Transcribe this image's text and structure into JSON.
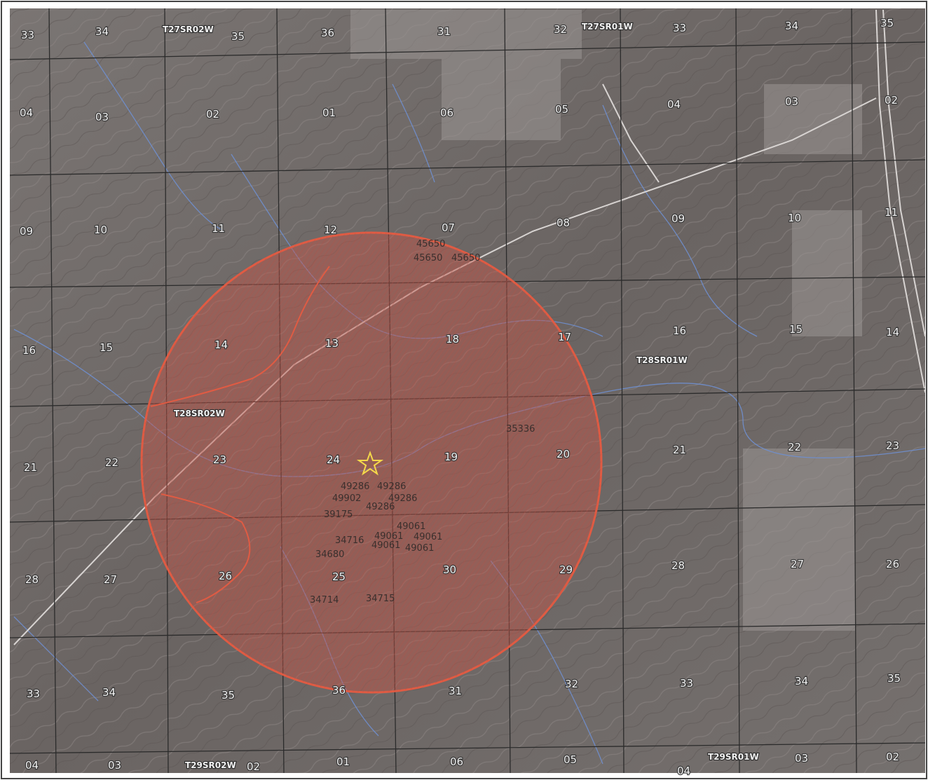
{
  "map": {
    "accent_colors": {
      "buffer_fill": "#c4564a",
      "buffer_stroke": "#e05b43",
      "site_star": "#f4d84a",
      "terrain": "#6f6a68",
      "section_lines": "#2b2b2b",
      "streams": "#6f8fcf"
    },
    "icons": {
      "site_marker": "star-icon"
    },
    "township_labels": {
      "t27s_r02w": "T27SR02W",
      "t27s_r01w": "T27SR01W",
      "t28s_r01w": "T28SR01W",
      "t28s_r02w": "T28SR02W",
      "t29s_r02w": "T29SR02W",
      "t29s_r01w": "T29SR01W"
    },
    "section_labels": [
      "33",
      "34",
      "35",
      "36",
      "31",
      "32",
      "33",
      "34",
      "35",
      "04",
      "03",
      "02",
      "01",
      "06",
      "05",
      "04",
      "03",
      "02",
      "09",
      "10",
      "11",
      "12",
      "07",
      "08",
      "09",
      "10",
      "11",
      "16",
      "15",
      "14",
      "13",
      "18",
      "17",
      "16",
      "15",
      "14",
      "21",
      "22",
      "23",
      "24",
      "19",
      "20",
      "21",
      "22",
      "23",
      "28",
      "27",
      "26",
      "25",
      "30",
      "29",
      "28",
      "27",
      "26",
      "33",
      "34",
      "35",
      "36",
      "31",
      "32",
      "33",
      "34",
      "35",
      "04",
      "03",
      "02",
      "01",
      "06",
      "05",
      "04",
      "03",
      "02"
    ],
    "well_labels": [
      "45650",
      "45650",
      "45650",
      "35336",
      "49286",
      "49286",
      "49902",
      "49286",
      "49286",
      "39175",
      "49061",
      "34716",
      "49061",
      "49061",
      "49061",
      "49061",
      "34680",
      "34714",
      "34715"
    ]
  }
}
